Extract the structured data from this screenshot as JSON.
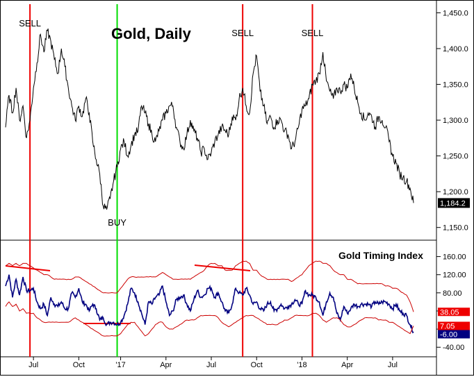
{
  "chart_data": [
    {
      "type": "line",
      "title": "Gold, Daily",
      "xlabel": "",
      "ylabel": "",
      "x_ticks": [
        "Jul",
        "Oct",
        "'17",
        "Apr",
        "Jul",
        "Oct",
        "'18",
        "Apr",
        "Jul"
      ],
      "y_ticks": [
        "1,450.0",
        "1,400.0",
        "1,350.0",
        "1,300.0",
        "1,250.0",
        "1,200.0",
        "1,150.0"
      ],
      "ylim": [
        1140,
        1465
      ],
      "last_value": "1,184.2",
      "series": [
        {
          "color": "#000000",
          "x": [
            "2016-05-20",
            "2016-05-27",
            "2016-06-03",
            "2016-06-10",
            "2016-06-17",
            "2016-06-24",
            "2016-07-01",
            "2016-07-08",
            "2016-07-15",
            "2016-07-22",
            "2016-07-29",
            "2016-08-05",
            "2016-08-12",
            "2016-08-19",
            "2016-08-26",
            "2016-09-02",
            "2016-09-09",
            "2016-09-16",
            "2016-09-23",
            "2016-09-30",
            "2016-10-07",
            "2016-10-14",
            "2016-10-21",
            "2016-10-28",
            "2016-11-04",
            "2016-11-11",
            "2016-11-18",
            "2016-11-25",
            "2016-12-02",
            "2016-12-09",
            "2016-12-16",
            "2016-12-23",
            "2016-12-30",
            "2017-01-06",
            "2017-01-13",
            "2017-01-20",
            "2017-01-27",
            "2017-02-03",
            "2017-02-10",
            "2017-02-17",
            "2017-02-24",
            "2017-03-03",
            "2017-03-10",
            "2017-03-17",
            "2017-03-24",
            "2017-03-31",
            "2017-04-07",
            "2017-04-14",
            "2017-04-21",
            "2017-04-28",
            "2017-05-05",
            "2017-05-12",
            "2017-05-19",
            "2017-05-26",
            "2017-06-02",
            "2017-06-09",
            "2017-06-16",
            "2017-06-23",
            "2017-06-30",
            "2017-07-07",
            "2017-07-14",
            "2017-07-21",
            "2017-07-28",
            "2017-08-04",
            "2017-08-11",
            "2017-08-18",
            "2017-08-25",
            "2017-09-01",
            "2017-09-08",
            "2017-09-15",
            "2017-09-22",
            "2017-09-29",
            "2017-10-06",
            "2017-10-13",
            "2017-10-20",
            "2017-10-27",
            "2017-11-03",
            "2017-11-10",
            "2017-11-17",
            "2017-11-24",
            "2017-12-01",
            "2017-12-08",
            "2017-12-15",
            "2017-12-22",
            "2017-12-29",
            "2018-01-05",
            "2018-01-12",
            "2018-01-19",
            "2018-01-26",
            "2018-02-02",
            "2018-02-09",
            "2018-02-16",
            "2018-02-23",
            "2018-03-02",
            "2018-03-09",
            "2018-03-16",
            "2018-03-23",
            "2018-03-30",
            "2018-04-06",
            "2018-04-13",
            "2018-04-20",
            "2018-04-27",
            "2018-05-04",
            "2018-05-11",
            "2018-05-18",
            "2018-05-25",
            "2018-06-01",
            "2018-06-08",
            "2018-06-15",
            "2018-06-22",
            "2018-06-29",
            "2018-07-06",
            "2018-07-13",
            "2018-07-20",
            "2018-07-27",
            "2018-08-03",
            "2018-08-10",
            "2018-08-17"
          ],
          "values": [
            1290,
            1335,
            1310,
            1345,
            1300,
            1320,
            1275,
            1300,
            1345,
            1380,
            1420,
            1395,
            1425,
            1410,
            1385,
            1365,
            1400,
            1375,
            1345,
            1320,
            1300,
            1320,
            1305,
            1330,
            1310,
            1270,
            1245,
            1225,
            1180,
            1175,
            1190,
            1215,
            1235,
            1260,
            1270,
            1250,
            1265,
            1280,
            1285,
            1320,
            1310,
            1295,
            1280,
            1270,
            1285,
            1300,
            1310,
            1320,
            1320,
            1290,
            1270,
            1260,
            1280,
            1300,
            1285,
            1275,
            1255,
            1260,
            1245,
            1255,
            1270,
            1280,
            1290,
            1285,
            1280,
            1305,
            1300,
            1330,
            1345,
            1320,
            1310,
            1365,
            1390,
            1340,
            1320,
            1295,
            1305,
            1290,
            1300,
            1300,
            1285,
            1280,
            1260,
            1270,
            1290,
            1315,
            1320,
            1330,
            1350,
            1355,
            1365,
            1395,
            1355,
            1340,
            1330,
            1345,
            1340,
            1350,
            1345,
            1365,
            1345,
            1325,
            1310,
            1300,
            1310,
            1305,
            1290,
            1305,
            1300,
            1290,
            1270,
            1250,
            1240,
            1225,
            1220,
            1215,
            1205,
            1184.2
          ]
        }
      ],
      "annotations": [
        {
          "label": "SELL",
          "x": "2016-07-08"
        },
        {
          "label": "BUY",
          "x": "2016-12-30"
        },
        {
          "label": "SELL",
          "x": "2017-09-08"
        },
        {
          "label": "SELL",
          "x": "2018-01-26"
        }
      ]
    },
    {
      "type": "line",
      "title": "Gold Timing Index",
      "xlabel": "",
      "ylabel": "",
      "y_ticks": [
        "160.00",
        "120.00",
        "80.00",
        "40.00",
        "0.00",
        "-40.00"
      ],
      "ylim": [
        -58,
        190
      ],
      "value_labels": [
        "38.05",
        "7.05",
        "-6.00"
      ],
      "series": [
        {
          "color": "#000080",
          "values": [
            95,
            120,
            70,
            110,
            75,
            115,
            85,
            85,
            90,
            60,
            45,
            55,
            30,
            70,
            55,
            50,
            60,
            45,
            45,
            80,
            70,
            90,
            60,
            55,
            40,
            55,
            45,
            20,
            25,
            10,
            15,
            15,
            10,
            15,
            30,
            55,
            90,
            80,
            60,
            35,
            10,
            60,
            55,
            70,
            75,
            95,
            60,
            30,
            40,
            65,
            70,
            75,
            55,
            40,
            65,
            85,
            70,
            75,
            90,
            90,
            70,
            80,
            60,
            40,
            35,
            55,
            90,
            80,
            75,
            90,
            75,
            55,
            60,
            45,
            40,
            55,
            60,
            40,
            45,
            55,
            45,
            50,
            55,
            65,
            55,
            55,
            85,
            75,
            75,
            70,
            60,
            30,
            60,
            80,
            70,
            35,
            20,
            50,
            35,
            45,
            55,
            50,
            55,
            55,
            55,
            50,
            60,
            55,
            60,
            60,
            55,
            45,
            55,
            40,
            35,
            30,
            10,
            -6
          ]
        },
        {
          "color": "#cc0000",
          "values": [
            140,
            145,
            140,
            145,
            140,
            145,
            145,
            140,
            135,
            130,
            125,
            120,
            120,
            115,
            110,
            110,
            110,
            110,
            110,
            110,
            115,
            115,
            110,
            105,
            100,
            95,
            90,
            85,
            80,
            80,
            80,
            80,
            80,
            90,
            100,
            110,
            115,
            115,
            115,
            115,
            115,
            115,
            115,
            115,
            120,
            125,
            120,
            115,
            110,
            110,
            110,
            110,
            110,
            110,
            115,
            120,
            125,
            130,
            140,
            145,
            145,
            140,
            140,
            130,
            130,
            130,
            140,
            145,
            150,
            150,
            145,
            130,
            130,
            120,
            115,
            110,
            110,
            110,
            110,
            110,
            110,
            110,
            105,
            110,
            115,
            120,
            130,
            140,
            145,
            150,
            150,
            145,
            145,
            140,
            130,
            125,
            120,
            120,
            110,
            110,
            105,
            100,
            100,
            100,
            100,
            100,
            100,
            100,
            100,
            95,
            95,
            90,
            90,
            85,
            80,
            75,
            60,
            38.05
          ]
        },
        {
          "color": "#cc0000",
          "values": [
            50,
            60,
            50,
            55,
            40,
            45,
            35,
            35,
            35,
            25,
            20,
            15,
            15,
            15,
            15,
            15,
            15,
            15,
            15,
            20,
            25,
            20,
            15,
            10,
            5,
            0,
            -5,
            -10,
            -15,
            -15,
            -15,
            -15,
            -15,
            -10,
            0,
            10,
            15,
            15,
            5,
            -5,
            -15,
            -10,
            0,
            10,
            15,
            15,
            5,
            0,
            0,
            5,
            10,
            15,
            20,
            20,
            20,
            25,
            30,
            30,
            30,
            30,
            30,
            25,
            15,
            10,
            5,
            10,
            15,
            20,
            25,
            30,
            30,
            30,
            25,
            20,
            15,
            10,
            10,
            10,
            10,
            15,
            20,
            20,
            25,
            30,
            30,
            30,
            30,
            30,
            35,
            35,
            30,
            20,
            15,
            20,
            25,
            25,
            20,
            10,
            5,
            5,
            10,
            15,
            20,
            25,
            25,
            25,
            25,
            20,
            20,
            20,
            15,
            15,
            10,
            5,
            0,
            -5,
            -10,
            7.05
          ]
        }
      ]
    }
  ]
}
